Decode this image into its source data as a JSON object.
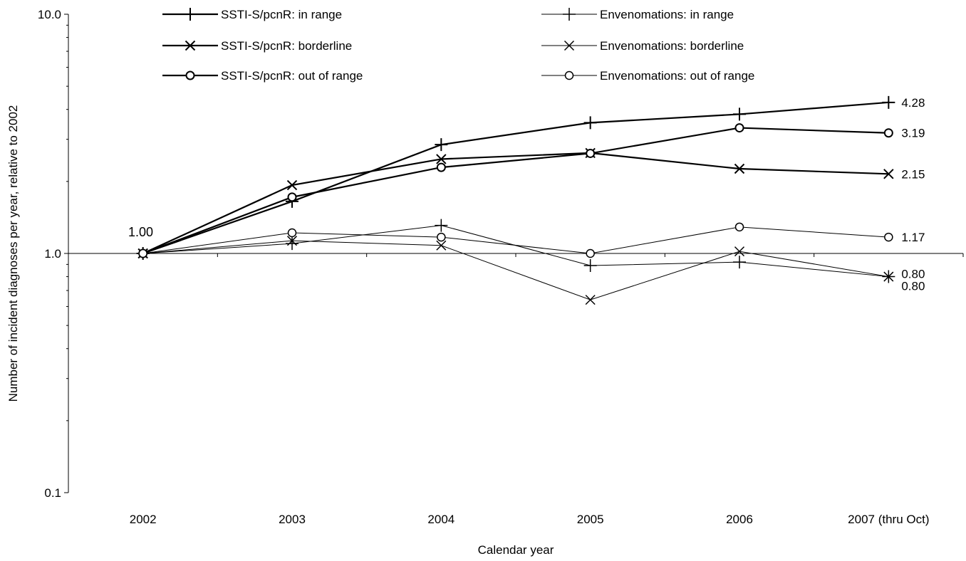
{
  "chart_data": {
    "type": "line",
    "title": "",
    "xlabel": "Calendar year",
    "ylabel": "Number of incident diagnoses per year, relative to 2002",
    "y_scale": "log",
    "ylim": [
      0.1,
      10
    ],
    "y_ticks": [
      "0.1",
      "1.0",
      "10.0"
    ],
    "categories": [
      "2002",
      "2003",
      "2004",
      "2005",
      "2006",
      "2007 (thru Oct)"
    ],
    "legend_position": "top",
    "start_label": "1.00",
    "series": [
      {
        "name": "SSTI-S/pcnR: in range",
        "group": "SSTI",
        "marker": "plus",
        "values": [
          1.0,
          1.65,
          2.85,
          3.52,
          3.82,
          4.28
        ],
        "end_label": "4.28"
      },
      {
        "name": "SSTI-S/pcnR: borderline",
        "group": "SSTI",
        "marker": "x",
        "values": [
          1.0,
          1.93,
          2.48,
          2.63,
          2.26,
          2.15
        ],
        "end_label": "2.15"
      },
      {
        "name": "SSTI-S/pcnR: out of range",
        "group": "SSTI",
        "marker": "circle",
        "values": [
          1.0,
          1.72,
          2.29,
          2.62,
          3.35,
          3.19
        ],
        "end_label": "3.19"
      },
      {
        "name": "Envenomations: in range",
        "group": "Envenomations",
        "marker": "plus",
        "values": [
          1.0,
          1.1,
          1.31,
          0.89,
          0.92,
          0.8
        ],
        "end_label": "0.80"
      },
      {
        "name": "Envenomations: borderline",
        "group": "Envenomations",
        "marker": "x",
        "values": [
          1.0,
          1.13,
          1.08,
          0.64,
          1.02,
          0.8
        ],
        "end_label": "0.80"
      },
      {
        "name": "Envenomations: out of range",
        "group": "Envenomations",
        "marker": "circle",
        "values": [
          1.0,
          1.22,
          1.17,
          1.0,
          1.29,
          1.17
        ],
        "end_label": "1.17"
      }
    ]
  }
}
